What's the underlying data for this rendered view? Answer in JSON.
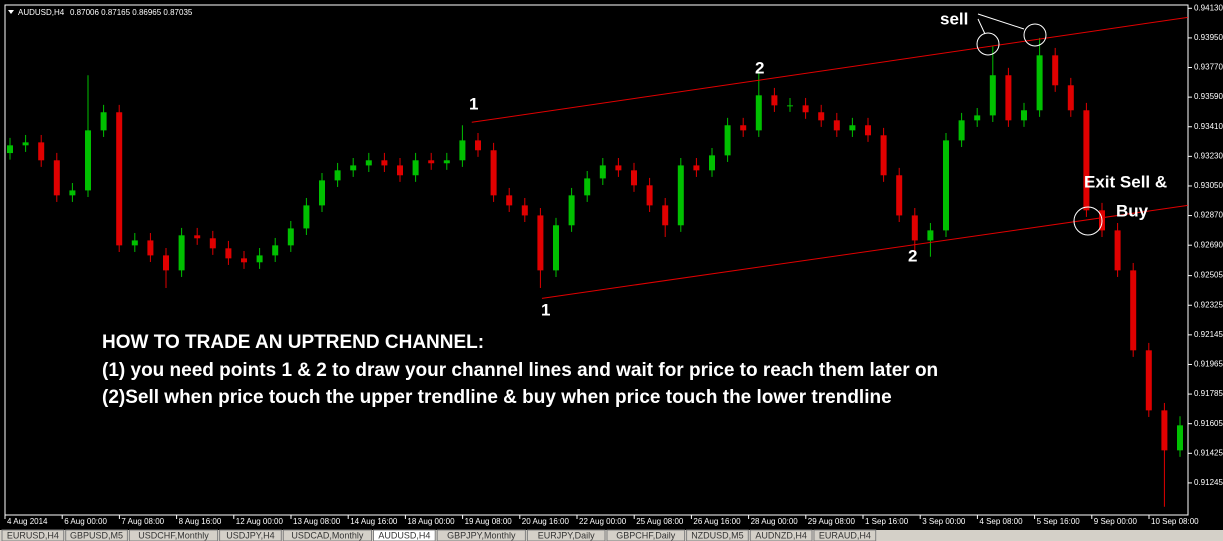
{
  "header": {
    "symbol": "AUDUSD,H4",
    "quote": "0.87006 0.87165 0.86965 0.87035"
  },
  "chart_data": {
    "type": "candlestick",
    "up_color": "#00c000",
    "down_color": "#e00000",
    "open": [
      0.9325,
      0.93297,
      0.93315,
      0.93206,
      0.92993,
      0.93023,
      0.93388,
      0.93498,
      0.92689,
      0.92719,
      0.92628,
      0.92537,
      0.9275,
      0.92732,
      0.92671,
      0.9261,
      0.92586,
      0.92628,
      0.92689,
      0.92792,
      0.92932,
      0.93084,
      0.93145,
      0.93175,
      0.93206,
      0.93175,
      0.93115,
      0.93206,
      0.93188,
      0.93206,
      0.93327,
      0.93267,
      0.92993,
      0.92932,
      0.92871,
      0.92537,
      0.92811,
      0.92993,
      0.93096,
      0.93175,
      0.93145,
      0.93054,
      0.92932,
      0.92811,
      0.93175,
      0.93145,
      0.93236,
      0.93419,
      0.93388,
      0.93601,
      0.9354,
      0.9354,
      0.93498,
      0.93449,
      0.93388,
      0.93419,
      0.93358,
      0.93115,
      0.92871,
      0.92719,
      0.9278,
      0.93327,
      0.93449,
      0.93479,
      0.93723,
      0.93449,
      0.9351,
      0.93844,
      0.93662,
      0.9351,
      0.92902,
      0.9278,
      0.92537,
      0.92051,
      0.91686,
      0.91443
    ],
    "high": [
      0.93342,
      0.9336,
      0.9336,
      0.93251,
      0.93068,
      0.93723,
      0.93543,
      0.93543,
      0.92764,
      0.92764,
      0.92673,
      0.92795,
      0.92795,
      0.92777,
      0.92716,
      0.92655,
      0.92673,
      0.92734,
      0.92837,
      0.92977,
      0.93129,
      0.9319,
      0.9322,
      0.93251,
      0.93251,
      0.9322,
      0.93251,
      0.93251,
      0.93251,
      0.93419,
      0.93372,
      0.93312,
      0.93038,
      0.92977,
      0.92916,
      0.92856,
      0.93038,
      0.93141,
      0.9322,
      0.9322,
      0.9319,
      0.93099,
      0.92977,
      0.9322,
      0.9322,
      0.93281,
      0.93464,
      0.93464,
      0.9374,
      0.93646,
      0.93585,
      0.93585,
      0.93543,
      0.93494,
      0.93464,
      0.93464,
      0.93403,
      0.9316,
      0.92916,
      0.92825,
      0.93372,
      0.93494,
      0.93524,
      0.939,
      0.93768,
      0.93555,
      0.9395,
      0.93889,
      0.93707,
      0.93555,
      0.92947,
      0.92825,
      0.92582,
      0.92096,
      0.91731,
      0.9165
    ],
    "low": [
      0.9321,
      0.93257,
      0.93166,
      0.92953,
      0.92953,
      0.92983,
      0.93348,
      0.92649,
      0.92649,
      0.92588,
      0.9243,
      0.92497,
      0.92692,
      0.92631,
      0.9257,
      0.92546,
      0.92546,
      0.92588,
      0.92649,
      0.92752,
      0.92892,
      0.93044,
      0.93105,
      0.93135,
      0.93135,
      0.93075,
      0.93075,
      0.93148,
      0.93148,
      0.93166,
      0.93227,
      0.92953,
      0.92892,
      0.92831,
      0.9243,
      0.92497,
      0.92771,
      0.92953,
      0.93056,
      0.93105,
      0.93014,
      0.92892,
      0.9274,
      0.92771,
      0.93105,
      0.93105,
      0.93196,
      0.93348,
      0.93348,
      0.935,
      0.935,
      0.93458,
      0.93409,
      0.93348,
      0.93348,
      0.93318,
      0.93075,
      0.92831,
      0.9265,
      0.9262,
      0.9274,
      0.93287,
      0.93409,
      0.93439,
      0.93409,
      0.93409,
      0.9347,
      0.93622,
      0.9347,
      0.92862,
      0.9274,
      0.92497,
      0.92011,
      0.91646,
      0.911,
      0.91403
    ],
    "close": [
      0.93297,
      0.93315,
      0.93206,
      0.92993,
      0.93023,
      0.93388,
      0.93498,
      0.92689,
      0.92719,
      0.92628,
      0.92537,
      0.9275,
      0.92732,
      0.92671,
      0.9261,
      0.92586,
      0.92628,
      0.92689,
      0.92792,
      0.92932,
      0.93084,
      0.93145,
      0.93175,
      0.93206,
      0.93175,
      0.93115,
      0.93206,
      0.93188,
      0.93206,
      0.93327,
      0.93267,
      0.92993,
      0.92932,
      0.92871,
      0.92537,
      0.92811,
      0.92993,
      0.93096,
      0.93175,
      0.93145,
      0.93054,
      0.92932,
      0.92811,
      0.93175,
      0.93145,
      0.93236,
      0.93419,
      0.93388,
      0.93601,
      0.9354,
      0.9354,
      0.93498,
      0.93449,
      0.93388,
      0.93419,
      0.93358,
      0.93115,
      0.92871,
      0.92719,
      0.9278,
      0.93327,
      0.93449,
      0.93479,
      0.93723,
      0.93449,
      0.9351,
      0.93844,
      0.93662,
      0.9351,
      0.92902,
      0.9278,
      0.92537,
      0.92051,
      0.91686,
      0.91443,
      0.91595
    ],
    "trendlines": [
      {
        "color": "#e00000",
        "x": [
          29.6,
          75.5
        ],
        "y": [
          0.93437,
          0.94075
        ]
      },
      {
        "color": "#e00000",
        "x": [
          34.1,
          75.5
        ],
        "y": [
          0.92367,
          0.92932
        ]
      }
    ],
    "ylim": [
      0.9105,
      0.9415
    ],
    "yticks": [
      {
        "value": 0.9413,
        "label": "0.94130"
      },
      {
        "value": 0.9395,
        "label": "0.93950"
      },
      {
        "value": 0.9377,
        "label": "0.93770"
      },
      {
        "value": 0.9359,
        "label": "0.93590"
      },
      {
        "value": 0.9341,
        "label": "0.93410"
      },
      {
        "value": 0.9323,
        "label": "0.93230"
      },
      {
        "value": 0.9305,
        "label": "0.93050"
      },
      {
        "value": 0.9287,
        "label": "0.92870"
      },
      {
        "value": 0.9269,
        "label": "0.92690"
      },
      {
        "value": 0.92505,
        "label": "0.92505"
      },
      {
        "value": 0.92325,
        "label": "0.92325"
      },
      {
        "value": 0.92145,
        "label": "0.92145"
      },
      {
        "value": 0.91965,
        "label": "0.91965"
      },
      {
        "value": 0.91785,
        "label": "0.91785"
      },
      {
        "value": 0.91605,
        "label": "0.91605"
      },
      {
        "value": 0.91425,
        "label": "0.91425"
      },
      {
        "value": 0.91245,
        "label": "0.91245"
      }
    ],
    "xtick_labels": [
      "4 Aug 2014",
      "6 Aug 00:00",
      "7 Aug 08:00",
      "8 Aug 16:00",
      "12 Aug 00:00",
      "13 Aug 08:00",
      "14 Aug 16:00",
      "18 Aug 00:00",
      "19 Aug 08:00",
      "20 Aug 16:00",
      "22 Aug 00:00",
      "25 Aug 08:00",
      "26 Aug 16:00",
      "28 Aug 00:00",
      "29 Aug 08:00",
      "1 Sep 16:00",
      "3 Sep 00:00",
      "4 Sep 08:00",
      "5 Sep 16:00",
      "9 Sep 00:00",
      "10 Sep 08:00"
    ],
    "annotations": {
      "p1_upper": "1",
      "p2_upper": "2",
      "p1_lower": "1",
      "p2_lower": "2",
      "sell": "sell",
      "exit1": "Exit Sell &",
      "exit2": "Buy",
      "lines": [
        "HOW TO TRADE AN UPTREND CHANNEL:",
        "(1) you need points 1 & 2 to draw your channel lines and wait for price to reach them later on",
        "(2)Sell when price touch the upper trendline & buy when price touch the lower trendline"
      ]
    }
  },
  "tabs": [
    "EURUSD,H4",
    "GBPUSD,M5",
    "USDCHF,Monthly",
    "USDJPY,H4",
    "USDCAD,Monthly",
    "AUDUSD,H4",
    "GBPJPY,Monthly",
    "EURJPY,Daily",
    "GBPCHF,Daily",
    "NZDUSD,M5",
    "AUDNZD,H4",
    "EURAUD,H4"
  ],
  "active_tab": 5
}
